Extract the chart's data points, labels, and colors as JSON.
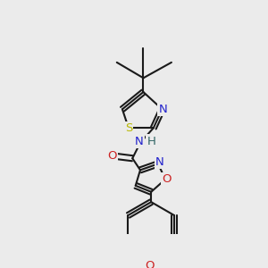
{
  "bg_color": "#ebebeb",
  "bond_color": "#1a1a1a",
  "bond_width": 1.5,
  "figsize": [
    3.0,
    3.0
  ],
  "dpi": 100,
  "xlim": [
    0,
    300
  ],
  "ylim": [
    0,
    300
  ]
}
